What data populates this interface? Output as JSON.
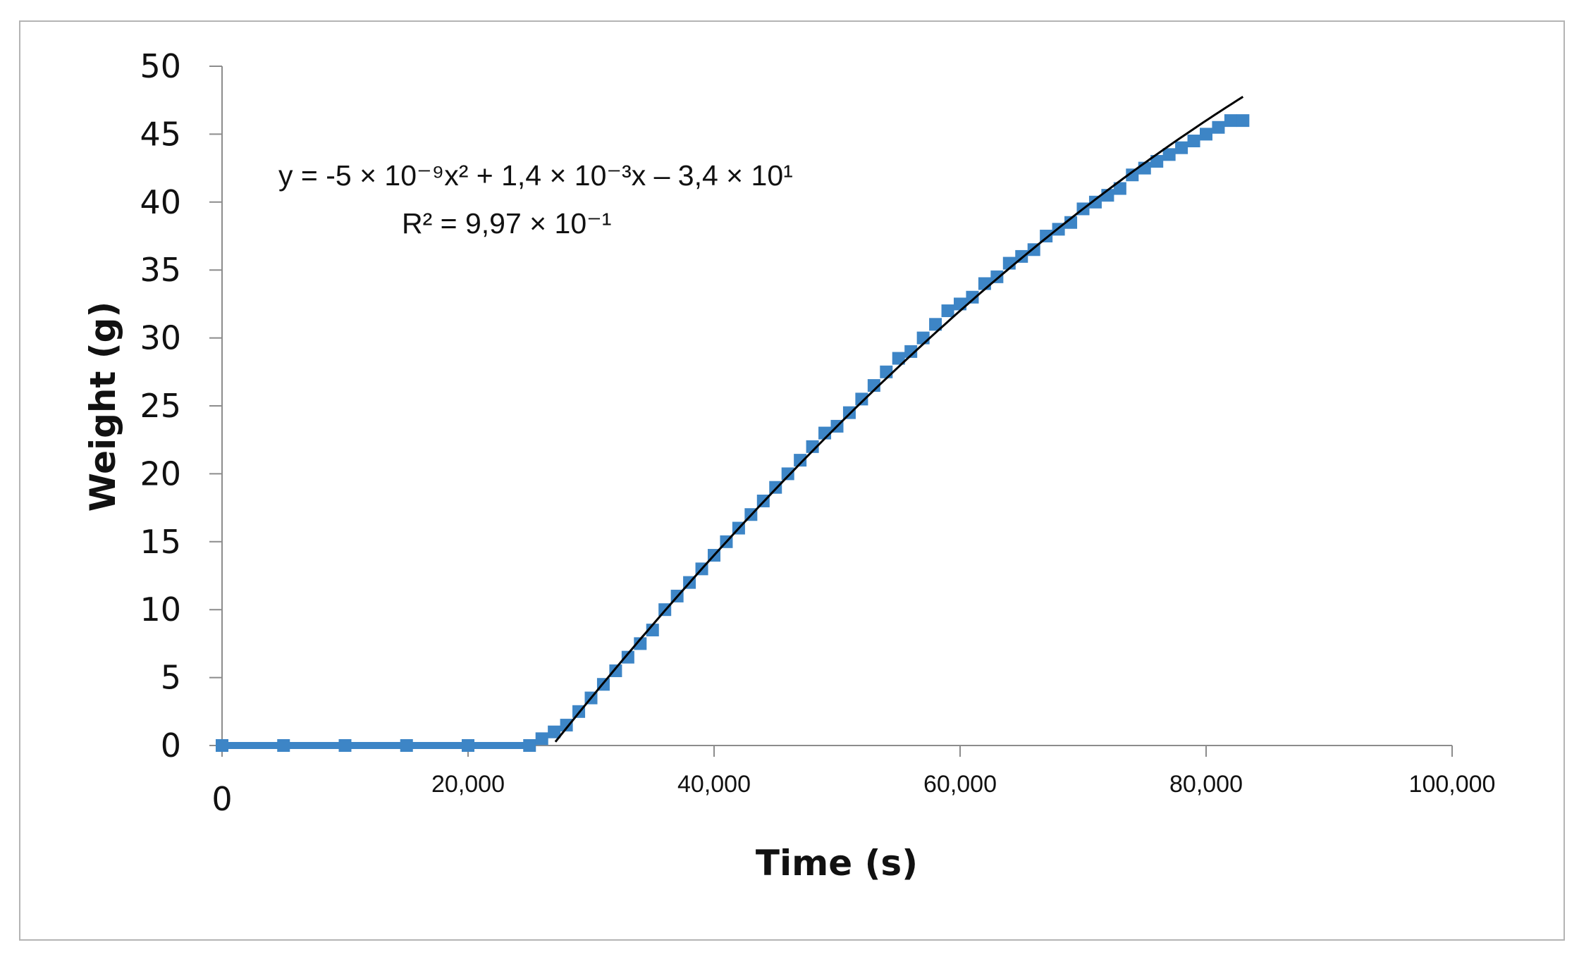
{
  "chart_data": {
    "type": "scatter",
    "title": "",
    "xlabel": "Time (s)",
    "ylabel": "Weight (g)",
    "xlim": [
      0,
      100000
    ],
    "ylim": [
      0,
      50
    ],
    "x_ticks": [
      0,
      20000,
      40000,
      60000,
      80000,
      100000
    ],
    "x_tick_labels": [
      "0",
      "20,000",
      "40,000",
      "60,000",
      "80,000",
      "100,000"
    ],
    "y_ticks": [
      0,
      5,
      10,
      15,
      20,
      25,
      30,
      35,
      40,
      45,
      50
    ],
    "y_tick_labels": [
      "0",
      "5",
      "10",
      "15",
      "20",
      "25",
      "30",
      "35",
      "40",
      "45",
      "50"
    ],
    "grid": false,
    "series_color": "#3d85c6",
    "trendline_color": "#000000",
    "series": [
      {
        "values": [
          [
            0,
            0
          ],
          [
            5000,
            0
          ],
          [
            10000,
            0
          ],
          [
            15000,
            0
          ],
          [
            20000,
            0
          ],
          [
            25000,
            0
          ],
          [
            26000,
            0.5
          ],
          [
            27000,
            1
          ],
          [
            28000,
            1.5
          ],
          [
            29000,
            2.5
          ],
          [
            30000,
            3.5
          ],
          [
            31000,
            4.5
          ],
          [
            32000,
            5.5
          ],
          [
            33000,
            6.5
          ],
          [
            34000,
            7.5
          ],
          [
            35000,
            8.5
          ],
          [
            36000,
            10
          ],
          [
            37000,
            11
          ],
          [
            38000,
            12
          ],
          [
            39000,
            13
          ],
          [
            40000,
            14
          ],
          [
            41000,
            15
          ],
          [
            42000,
            16
          ],
          [
            43000,
            17
          ],
          [
            44000,
            18
          ],
          [
            45000,
            19
          ],
          [
            46000,
            20
          ],
          [
            47000,
            21
          ],
          [
            48000,
            22
          ],
          [
            49000,
            23
          ],
          [
            50000,
            23.5
          ],
          [
            51000,
            24.5
          ],
          [
            52000,
            25.5
          ],
          [
            53000,
            26.5
          ],
          [
            54000,
            27.5
          ],
          [
            55000,
            28.5
          ],
          [
            56000,
            29
          ],
          [
            57000,
            30
          ],
          [
            58000,
            31
          ],
          [
            59000,
            32
          ],
          [
            60000,
            32.5
          ],
          [
            61000,
            33
          ],
          [
            62000,
            34
          ],
          [
            63000,
            34.5
          ],
          [
            64000,
            35.5
          ],
          [
            65000,
            36
          ],
          [
            66000,
            36.5
          ],
          [
            67000,
            37.5
          ],
          [
            68000,
            38
          ],
          [
            69000,
            38.5
          ],
          [
            70000,
            39.5
          ],
          [
            71000,
            40
          ],
          [
            72000,
            40.5
          ],
          [
            73000,
            41
          ],
          [
            74000,
            42
          ],
          [
            75000,
            42.5
          ],
          [
            76000,
            43
          ],
          [
            77000,
            43.5
          ],
          [
            78000,
            44
          ],
          [
            79000,
            44.5
          ],
          [
            80000,
            45
          ],
          [
            81000,
            45.5
          ],
          [
            82000,
            46
          ],
          [
            83000,
            46
          ]
        ]
      }
    ],
    "trendline": {
      "type": "polynomial",
      "coefficients": [
        -5e-09,
        0.0014,
        -34
      ],
      "x_range": [
        27100,
        83000
      ],
      "equation_label": "y = -5 × 10⁻⁹x² + 1,4 × 10⁻³x – 3,4 × 10¹",
      "r2_label": "R² = 9,97 × 10⁻¹"
    }
  }
}
